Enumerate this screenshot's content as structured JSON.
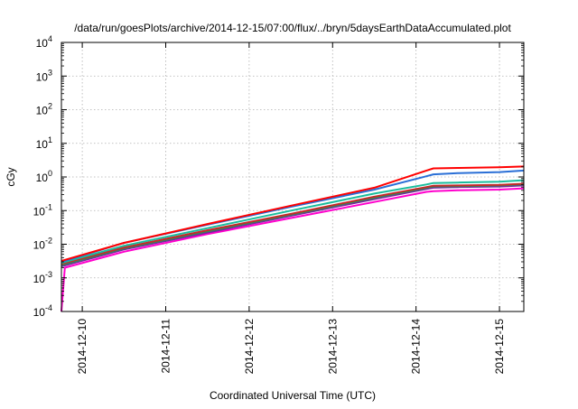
{
  "chart_data": {
    "type": "line",
    "title": "/data/run/goesPlots/archive/2014-12-15/07:00/flux/../bryn/5daysEarthDataAccumulated.plot",
    "xlabel": "Coordinated Universal Time (UTC)",
    "ylabel": "cGy",
    "y_scale": "log",
    "ylim": [
      0.0001,
      10000
    ],
    "xlim": [
      "2014-12-09T18:00",
      "2014-12-15T07:00"
    ],
    "grid": true,
    "x_ticks": [
      "2014-12-10",
      "2014-12-11",
      "2014-12-12",
      "2014-12-13",
      "2014-12-14",
      "2014-12-15"
    ],
    "y_ticks": [
      {
        "value": 0.0001,
        "base": "10",
        "exp": "-4"
      },
      {
        "value": 0.001,
        "base": "10",
        "exp": "-3"
      },
      {
        "value": 0.01,
        "base": "10",
        "exp": "-2"
      },
      {
        "value": 0.1,
        "base": "10",
        "exp": "-1"
      },
      {
        "value": 1,
        "base": "10",
        "exp": "0"
      },
      {
        "value": 10,
        "base": "10",
        "exp": "1"
      },
      {
        "value": 100,
        "base": "10",
        "exp": "2"
      },
      {
        "value": 1000,
        "base": "10",
        "exp": "3"
      },
      {
        "value": 10000,
        "base": "10",
        "exp": "4"
      }
    ],
    "series": [
      {
        "color": "#ff00cc",
        "points": [
          [
            "2014-12-09T18:00",
            0.0001
          ],
          [
            "2014-12-09T19:00",
            0.002
          ],
          [
            "2014-12-10T12:00",
            0.006
          ],
          [
            "2014-12-11T12:00",
            0.02
          ],
          [
            "2014-12-12T12:00",
            0.06
          ],
          [
            "2014-12-13T12:00",
            0.18
          ],
          [
            "2014-12-14T03:00",
            0.36
          ],
          [
            "2014-12-14T05:00",
            0.38
          ],
          [
            "2014-12-14T12:00",
            0.4
          ],
          [
            "2014-12-15T00:00",
            0.42
          ],
          [
            "2014-12-15T07:00",
            0.46
          ]
        ]
      },
      {
        "color": "#7b1fa2",
        "points": [
          [
            "2014-12-09T18:00",
            0.0022
          ],
          [
            "2014-12-10T12:00",
            0.007
          ],
          [
            "2014-12-11T12:00",
            0.022
          ],
          [
            "2014-12-12T12:00",
            0.07
          ],
          [
            "2014-12-13T12:00",
            0.22
          ],
          [
            "2014-12-14T03:00",
            0.44
          ],
          [
            "2014-12-14T05:00",
            0.48
          ],
          [
            "2014-12-14T12:00",
            0.5
          ],
          [
            "2014-12-15T00:00",
            0.52
          ],
          [
            "2014-12-15T07:00",
            0.56
          ]
        ]
      },
      {
        "color": "#2e8b57",
        "points": [
          [
            "2014-12-09T18:00",
            0.0024
          ],
          [
            "2014-12-10T12:00",
            0.0075
          ],
          [
            "2014-12-11T12:00",
            0.024
          ],
          [
            "2014-12-12T12:00",
            0.075
          ],
          [
            "2014-12-13T12:00",
            0.24
          ],
          [
            "2014-12-14T03:00",
            0.47
          ],
          [
            "2014-12-14T05:00",
            0.52
          ],
          [
            "2014-12-14T12:00",
            0.53
          ],
          [
            "2014-12-15T00:00",
            0.56
          ],
          [
            "2014-12-15T07:00",
            0.6
          ]
        ]
      },
      {
        "color": "#c62828",
        "points": [
          [
            "2014-12-09T18:00",
            0.0026
          ],
          [
            "2014-12-10T12:00",
            0.008
          ],
          [
            "2014-12-11T12:00",
            0.026
          ],
          [
            "2014-12-12T12:00",
            0.08
          ],
          [
            "2014-12-13T12:00",
            0.26
          ],
          [
            "2014-12-14T03:00",
            0.5
          ],
          [
            "2014-12-14T05:00",
            0.55
          ],
          [
            "2014-12-14T12:00",
            0.56
          ],
          [
            "2014-12-15T00:00",
            0.58
          ],
          [
            "2014-12-15T07:00",
            0.63
          ]
        ]
      },
      {
        "color": "#1abc9c",
        "points": [
          [
            "2014-12-09T18:00",
            0.0028
          ],
          [
            "2014-12-10T12:00",
            0.009
          ],
          [
            "2014-12-11T12:00",
            0.03
          ],
          [
            "2014-12-12T12:00",
            0.1
          ],
          [
            "2014-12-13T12:00",
            0.32
          ],
          [
            "2014-12-14T03:00",
            0.6
          ],
          [
            "2014-12-14T05:00",
            0.66
          ],
          [
            "2014-12-14T12:00",
            0.68
          ],
          [
            "2014-12-15T00:00",
            0.72
          ],
          [
            "2014-12-15T07:00",
            0.8
          ]
        ]
      },
      {
        "color": "#2a6fd6",
        "points": [
          [
            "2014-12-09T18:00",
            0.003
          ],
          [
            "2014-12-10T12:00",
            0.011
          ],
          [
            "2014-12-11T12:00",
            0.038
          ],
          [
            "2014-12-12T12:00",
            0.13
          ],
          [
            "2014-12-13T12:00",
            0.42
          ],
          [
            "2014-12-14T03:00",
            1.05
          ],
          [
            "2014-12-14T05:00",
            1.2
          ],
          [
            "2014-12-14T12:00",
            1.3
          ],
          [
            "2014-12-15T00:00",
            1.4
          ],
          [
            "2014-12-15T07:00",
            1.55
          ]
        ]
      },
      {
        "color": "#ff0000",
        "points": [
          [
            "2014-12-09T18:00",
            0.0032
          ],
          [
            "2014-12-10T12:00",
            0.011
          ],
          [
            "2014-12-11T12:00",
            0.04
          ],
          [
            "2014-12-12T12:00",
            0.14
          ],
          [
            "2014-12-13T12:00",
            0.48
          ],
          [
            "2014-12-14T03:00",
            1.55
          ],
          [
            "2014-12-14T05:00",
            1.8
          ],
          [
            "2014-12-14T12:00",
            1.85
          ],
          [
            "2014-12-15T00:00",
            1.95
          ],
          [
            "2014-12-15T07:00",
            2.05
          ]
        ]
      }
    ]
  }
}
